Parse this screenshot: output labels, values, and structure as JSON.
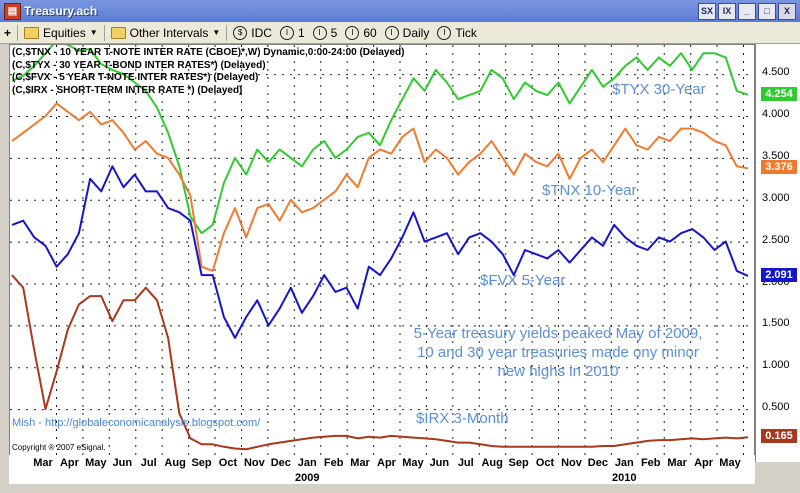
{
  "window": {
    "title": "Treasury.ach",
    "app_icon": "treasury-chart-icon",
    "buttons": [
      "SX",
      "IX",
      "",
      "",
      "X"
    ]
  },
  "toolbar": {
    "plus": "+",
    "equities_label": "Equities",
    "intervals_label": "Other Intervals",
    "items": [
      {
        "icon": "$",
        "label": "IDC"
      },
      {
        "icon": "I",
        "label": "1"
      },
      {
        "icon": "I",
        "label": "5"
      },
      {
        "icon": "I",
        "label": "60"
      },
      {
        "icon": "I",
        "label": "Daily"
      },
      {
        "icon": "I",
        "label": "Tick"
      }
    ]
  },
  "legend": [
    "(C,$TNX - 10 YEAR T-NOTE INTER RATE (CBOE)*,W) Dynamic,0:00-24:00 (Delayed)",
    "(C,$TYX - 30 YEAR T-BOND INTER RATES*)  (Delayed)",
    "(C,$FVX - 5 YEAR T-NOTE INTER RATES*)  (Delayed)",
    "(C,$IRX - SHORT-TERM INTER RATE *)  (Delayed)"
  ],
  "annotations": {
    "tyx": "$TYX 30-Year",
    "tnx": "$TNX 10-Year",
    "fvx": "$FVX 5-Year",
    "irx": "$IRX 3-Month",
    "note": "5-Year treasury yields peaked May of 2009, 10 and 30 year treasuries made ony minor new highs in 2010",
    "mish": "Mish - http://globaleconomicanalysis.blogspot.com/",
    "copyright": "Copyright ® 2007 eSignal."
  },
  "chart_data": {
    "type": "line",
    "ylim": [
      0,
      4.8
    ],
    "yticks": [
      "4.500",
      "4.000",
      "3.500",
      "3.000",
      "2.500",
      "2.000",
      "1.500",
      "1.000",
      "0.500"
    ],
    "xlabels": [
      "Mar",
      "Apr",
      "May",
      "Jun",
      "Jul",
      "Aug",
      "Sep",
      "Oct",
      "Nov",
      "Dec",
      "Jan",
      "Feb",
      "Mar",
      "Apr",
      "May",
      "Jun",
      "Jul",
      "Aug",
      "Sep",
      "Oct",
      "Nov",
      "Dec",
      "Jan",
      "Feb",
      "Mar",
      "Apr",
      "May"
    ],
    "years": [
      "2009",
      "2010"
    ],
    "grid": true,
    "series": [
      {
        "name": "$TYX",
        "color": "#2ecc2e",
        "last": "4.254",
        "values": [
          4.42,
          4.48,
          4.6,
          4.75,
          4.9,
          4.85,
          4.78,
          4.8,
          4.62,
          4.55,
          4.5,
          4.4,
          4.3,
          4.1,
          3.8,
          3.4,
          2.8,
          2.6,
          2.7,
          3.2,
          3.5,
          3.3,
          3.6,
          3.45,
          3.6,
          3.5,
          3.4,
          3.6,
          3.7,
          3.5,
          3.6,
          3.75,
          3.8,
          3.65,
          3.95,
          4.2,
          4.45,
          4.3,
          4.55,
          4.4,
          4.2,
          4.25,
          4.3,
          4.55,
          4.45,
          4.2,
          4.4,
          4.3,
          4.25,
          4.4,
          4.15,
          4.35,
          4.55,
          4.35,
          4.45,
          4.6,
          4.7,
          4.55,
          4.7,
          4.6,
          4.75,
          4.55,
          4.75,
          4.75,
          4.7,
          4.3,
          4.254
        ]
      },
      {
        "name": "$TNX",
        "color": "#f07a30",
        "last": "3.376",
        "values": [
          3.7,
          3.8,
          3.9,
          4.0,
          4.15,
          4.05,
          3.95,
          4.05,
          3.9,
          3.95,
          3.8,
          3.6,
          3.7,
          3.55,
          3.5,
          3.3,
          3.05,
          2.2,
          2.15,
          2.6,
          2.9,
          2.55,
          2.9,
          2.95,
          2.75,
          3.0,
          2.85,
          2.9,
          3.0,
          3.1,
          3.3,
          3.15,
          3.5,
          3.6,
          3.55,
          3.75,
          3.85,
          3.45,
          3.6,
          3.5,
          3.3,
          3.45,
          3.55,
          3.7,
          3.5,
          3.3,
          3.55,
          3.45,
          3.4,
          3.55,
          3.25,
          3.5,
          3.6,
          3.45,
          3.65,
          3.85,
          3.65,
          3.6,
          3.75,
          3.7,
          3.85,
          3.85,
          3.8,
          3.7,
          3.65,
          3.4,
          3.376
        ]
      },
      {
        "name": "$FVX",
        "color": "#1515cc",
        "last": "2.091",
        "values": [
          2.7,
          2.75,
          2.55,
          2.45,
          2.2,
          2.35,
          2.6,
          3.25,
          3.1,
          3.4,
          3.15,
          3.3,
          3.1,
          3.1,
          2.9,
          2.85,
          2.75,
          2.1,
          2.1,
          1.6,
          1.35,
          1.6,
          1.8,
          1.5,
          1.7,
          1.95,
          1.65,
          1.85,
          2.1,
          1.9,
          1.95,
          1.7,
          2.2,
          2.1,
          2.3,
          2.55,
          2.85,
          2.5,
          2.55,
          2.6,
          2.35,
          2.55,
          2.6,
          2.5,
          2.35,
          2.1,
          2.4,
          2.35,
          2.3,
          2.4,
          2.25,
          2.4,
          2.55,
          2.45,
          2.7,
          2.55,
          2.45,
          2.4,
          2.55,
          2.5,
          2.6,
          2.65,
          2.55,
          2.4,
          2.5,
          2.15,
          2.091
        ]
      },
      {
        "name": "$IRX",
        "color": "#a8381c",
        "last": "0.165",
        "values": [
          2.1,
          1.95,
          1.2,
          0.5,
          0.95,
          1.45,
          1.75,
          1.85,
          1.85,
          1.55,
          1.8,
          1.8,
          1.95,
          1.8,
          1.35,
          0.45,
          0.15,
          0.08,
          0.08,
          0.05,
          0.03,
          0.02,
          0.05,
          0.08,
          0.1,
          0.12,
          0.14,
          0.16,
          0.17,
          0.18,
          0.18,
          0.15,
          0.17,
          0.16,
          0.18,
          0.17,
          0.16,
          0.15,
          0.14,
          0.12,
          0.1,
          0.1,
          0.08,
          0.06,
          0.05,
          0.05,
          0.05,
          0.05,
          0.05,
          0.05,
          0.05,
          0.05,
          0.05,
          0.06,
          0.06,
          0.08,
          0.1,
          0.12,
          0.13,
          0.13,
          0.14,
          0.15,
          0.14,
          0.15,
          0.16,
          0.15,
          0.165
        ]
      }
    ]
  }
}
